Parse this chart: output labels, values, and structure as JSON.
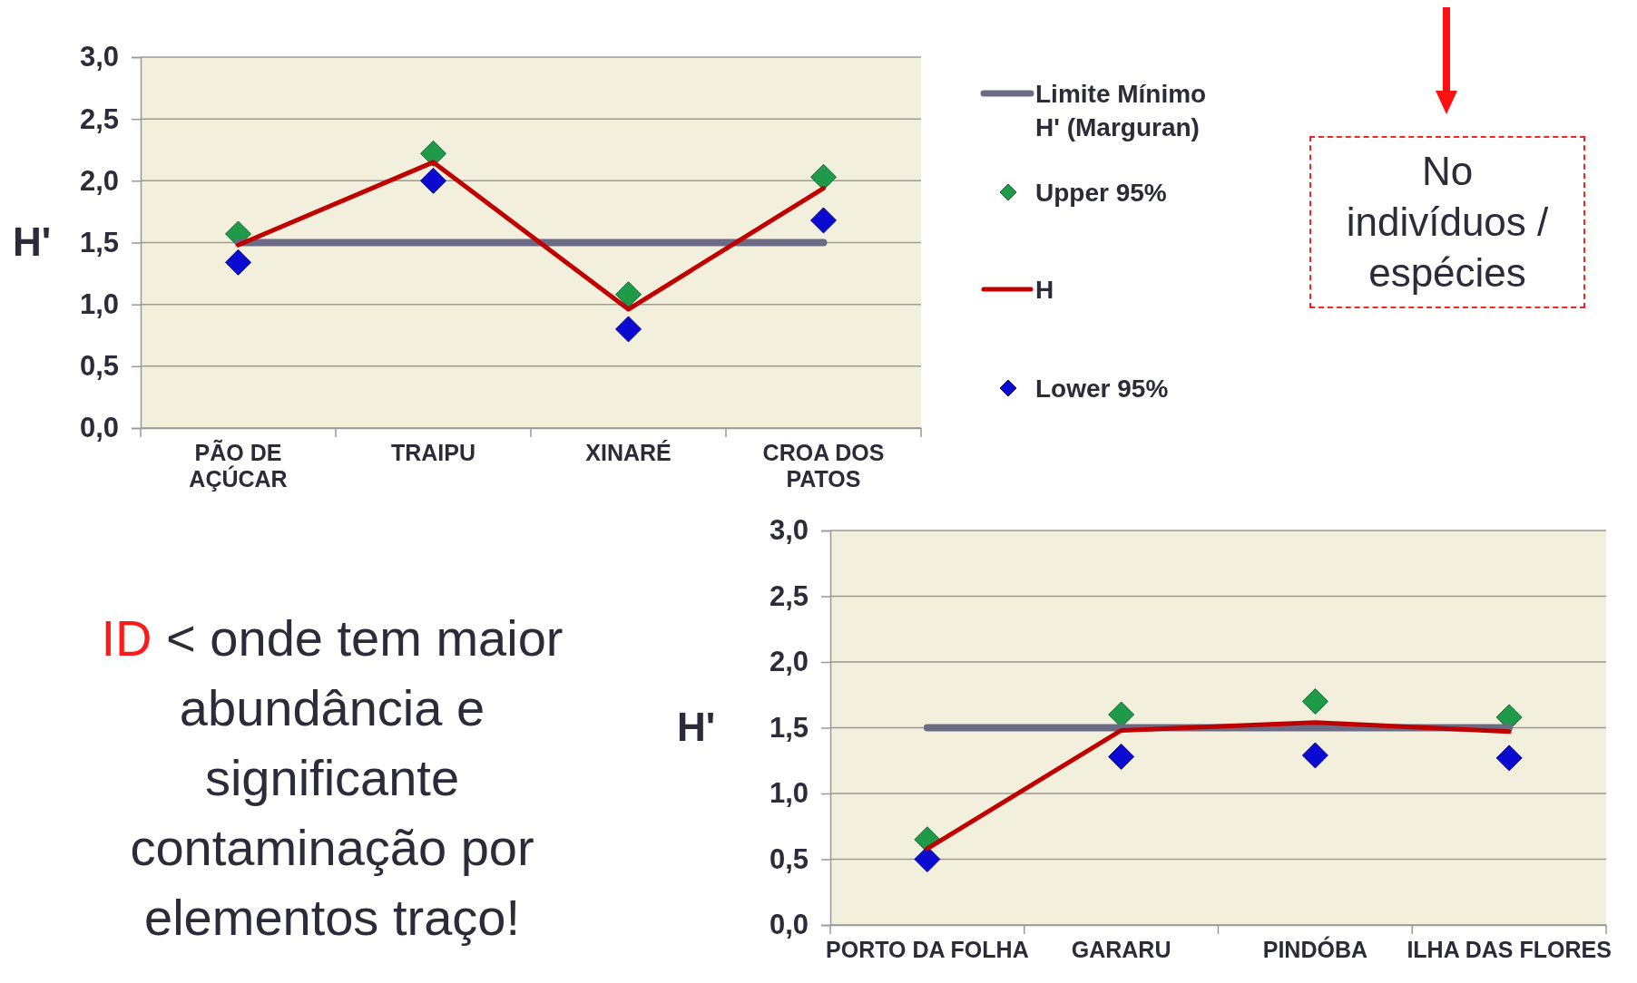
{
  "chart_data": [
    {
      "type": "line",
      "ylabel": "H'",
      "categories": [
        "PÃO DE AÇÚCAR",
        "TRAIPU",
        "XINARÉ",
        "CROA DOS PATOS"
      ],
      "series": [
        {
          "name": "Limite Mínimo H' (Marguran)",
          "color": "#6b6b85",
          "values": [
            1.5,
            1.5,
            1.5,
            1.5
          ]
        },
        {
          "name": "Upper 95%",
          "type": "scatter",
          "marker": "diamond",
          "color": "#1e9a48",
          "values": [
            1.57,
            2.22,
            1.08,
            2.03
          ]
        },
        {
          "name": "H",
          "color": "#c00000",
          "values": [
            1.48,
            2.15,
            0.96,
            1.94
          ]
        },
        {
          "name": "Lower 95%",
          "type": "scatter",
          "marker": "diamond",
          "color": "#0a0ad0",
          "values": [
            1.34,
            2.0,
            0.8,
            1.68
          ]
        }
      ],
      "ylim": [
        0,
        3
      ],
      "yticks": [
        {
          "value": 0,
          "label": "0,0"
        },
        {
          "value": 0.5,
          "label": "0,5"
        },
        {
          "value": 1,
          "label": "1,0"
        },
        {
          "value": 1.5,
          "label": "1,5"
        },
        {
          "value": 2,
          "label": "2,0"
        },
        {
          "value": 2.5,
          "label": "2,5"
        },
        {
          "value": 3,
          "label": "3,0"
        }
      ],
      "grid": "y",
      "legend": "right",
      "line_style": "solid",
      "annotations": [
        "No indivíduos / espécies"
      ]
    },
    {
      "type": "line",
      "ylabel": "H'",
      "categories": [
        "PORTO DA FOLHA",
        "GARARU",
        "PINDÓBA",
        "ILHA DAS FLORES"
      ],
      "series": [
        {
          "color": "#6b6b85",
          "values": [
            1.5,
            1.5,
            1.5,
            1.5
          ]
        },
        {
          "type": "scatter",
          "marker": "diamond",
          "color": "#1e9a48",
          "values": [
            0.65,
            1.6,
            1.7,
            1.58
          ]
        },
        {
          "color": "#c00000",
          "values": [
            0.58,
            1.48,
            1.54,
            1.47
          ]
        },
        {
          "type": "scatter",
          "marker": "diamond",
          "color": "#0a0ad0",
          "values": [
            0.5,
            1.28,
            1.29,
            1.27
          ]
        }
      ],
      "ylim": [
        0,
        3
      ],
      "yticks": [
        {
          "value": 0,
          "label": "0,0"
        },
        {
          "value": 0.5,
          "label": "0,5"
        },
        {
          "value": 1,
          "label": "1,0"
        },
        {
          "value": 1.5,
          "label": "1,5"
        },
        {
          "value": 2,
          "label": "2,0"
        },
        {
          "value": 2.5,
          "label": "2,5"
        },
        {
          "value": 3,
          "label": "3,0"
        }
      ],
      "grid": "y",
      "legend": false,
      "line_style": "solid",
      "annotations": [
        "ID",
        "< onde tem maior abundância e significante contaminação por elementos traço!"
      ]
    }
  ]
}
